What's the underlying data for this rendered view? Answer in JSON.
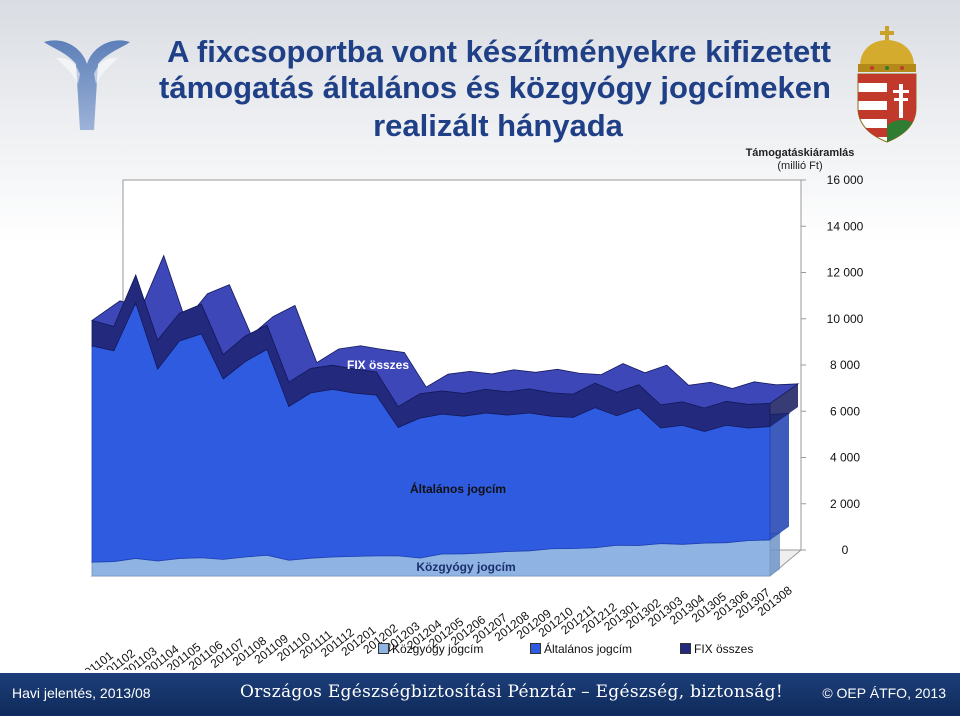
{
  "title": {
    "line1": "A fixcsoportba vont készítményekre kifizetett",
    "line2": "támogatás általános és közgyógy jogcímeken",
    "line3": "realizált hányada"
  },
  "footer": {
    "left": "Havi jelentés, 2013/08",
    "middle": "Országos Egészségbiztosítási Pénztár – Egészség, biztonság!",
    "right": "© OEP ÁTFO, 2013"
  },
  "chart_data": {
    "type": "area",
    "ylabel": "Támogatáskiáramlás",
    "yunit": "(millió Ft)",
    "ylim": [
      0,
      16000
    ],
    "yticks": [
      "0",
      "2 000",
      "4 000",
      "6 000",
      "8 000",
      "10 000",
      "12 000",
      "14 000",
      "16 000"
    ],
    "categories": [
      "201101",
      "201102",
      "201103",
      "201104",
      "201105",
      "201106",
      "201107",
      "201108",
      "201109",
      "201110",
      "201111",
      "201112",
      "201201",
      "201202",
      "201203",
      "201204",
      "201205",
      "201206",
      "201207",
      "201208",
      "201209",
      "201210",
      "201211",
      "201212",
      "201301",
      "201302",
      "201303",
      "201304",
      "201305",
      "201306",
      "201307",
      "201308"
    ],
    "series": [
      {
        "name": "Közgyógy jogcím",
        "color": "#8fb4e3",
        "values": [
          600,
          620,
          760,
          650,
          760,
          790,
          720,
          820,
          900,
          680,
          770,
          820,
          850,
          870,
          870,
          780,
          950,
          960,
          1000,
          1060,
          1090,
          1180,
          1190,
          1220,
          1330,
          1320,
          1400,
          1370,
          1420,
          1440,
          1530,
          1560
        ]
      },
      {
        "name": "Általános jogcím",
        "color": "#2f5be0",
        "values": [
          9350,
          9120,
          11050,
          8300,
          9400,
          9680,
          7800,
          8450,
          8900,
          6650,
          7150,
          7250,
          7060,
          6950,
          5550,
          6050,
          6050,
          5950,
          6050,
          5900,
          5960,
          5730,
          5670,
          6060,
          5600,
          5950,
          5000,
          5150,
          4830,
          5080,
          4870,
          4900
        ]
      },
      {
        "name": "FIX összes",
        "color": "#232a7e",
        "values": [
          1100,
          1050,
          1200,
          1250,
          1200,
          1280,
          1050,
          1100,
          1050,
          1050,
          1050,
          1040,
          1040,
          1000,
          900,
          1050,
          1000,
          980,
          1020,
          1000,
          1040,
          1010,
          1000,
          1060,
          1010,
          1000,
          1000,
          1010,
          1010,
          1030,
          1020,
          1000
        ]
      }
    ],
    "annotations": [
      "FIX összes",
      "Általános jogcím",
      "Közgyógy jogcím"
    ],
    "legend": "bottom",
    "grid": false
  }
}
